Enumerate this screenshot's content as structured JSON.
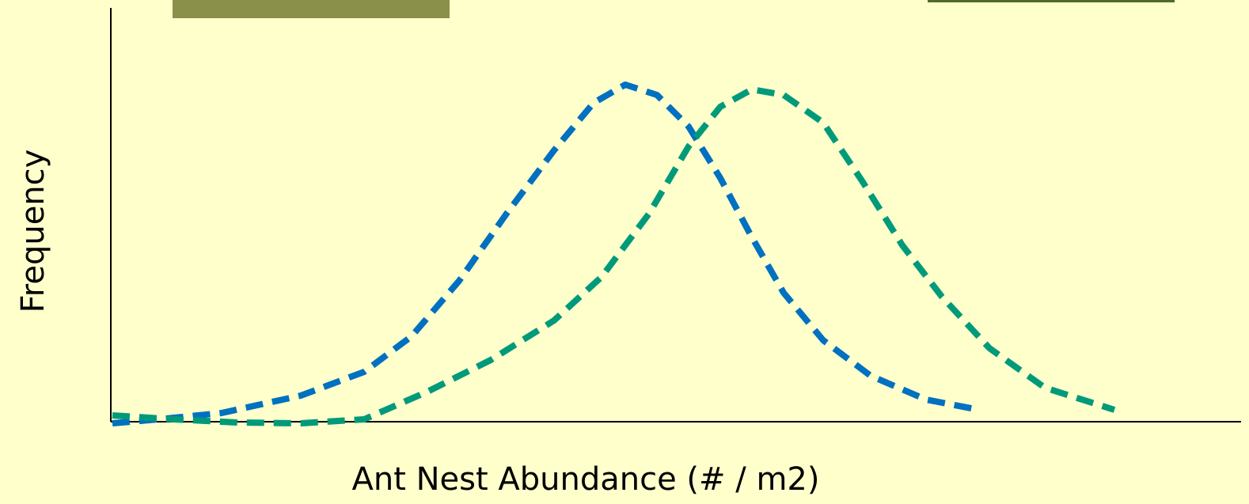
{
  "chart_data": {
    "type": "line",
    "xlabel": "Ant Nest Abundance (# / m2)",
    "ylabel": "Frequency",
    "xlim": [
      0,
      1428
    ],
    "ylim": [
      0,
      523
    ],
    "series": [
      {
        "color": "#0070c0",
        "x": [
          2,
          60,
          140,
          240,
          320,
          380,
          440,
          500,
          560,
          610,
          650,
          690,
          730,
          770,
          810,
          850,
          900,
          960,
          1030,
          1097
        ],
        "values": [
          -2,
          3,
          11,
          33,
          63,
          108,
          178,
          263,
          343,
          403,
          426,
          413,
          373,
          308,
          233,
          163,
          103,
          58,
          28,
          15
        ]
      },
      {
        "color": "#009a7a",
        "x": [
          2,
          80,
          160,
          240,
          320,
          400,
          480,
          560,
          620,
          680,
          730,
          770,
          810,
          850,
          900,
          950,
          1000,
          1050,
          1110,
          1180,
          1268
        ],
        "values": [
          8,
          3,
          -1,
          -2,
          3,
          38,
          78,
          128,
          183,
          263,
          348,
          398,
          420,
          413,
          378,
          303,
          223,
          158,
          93,
          43,
          15
        ]
      }
    ]
  }
}
